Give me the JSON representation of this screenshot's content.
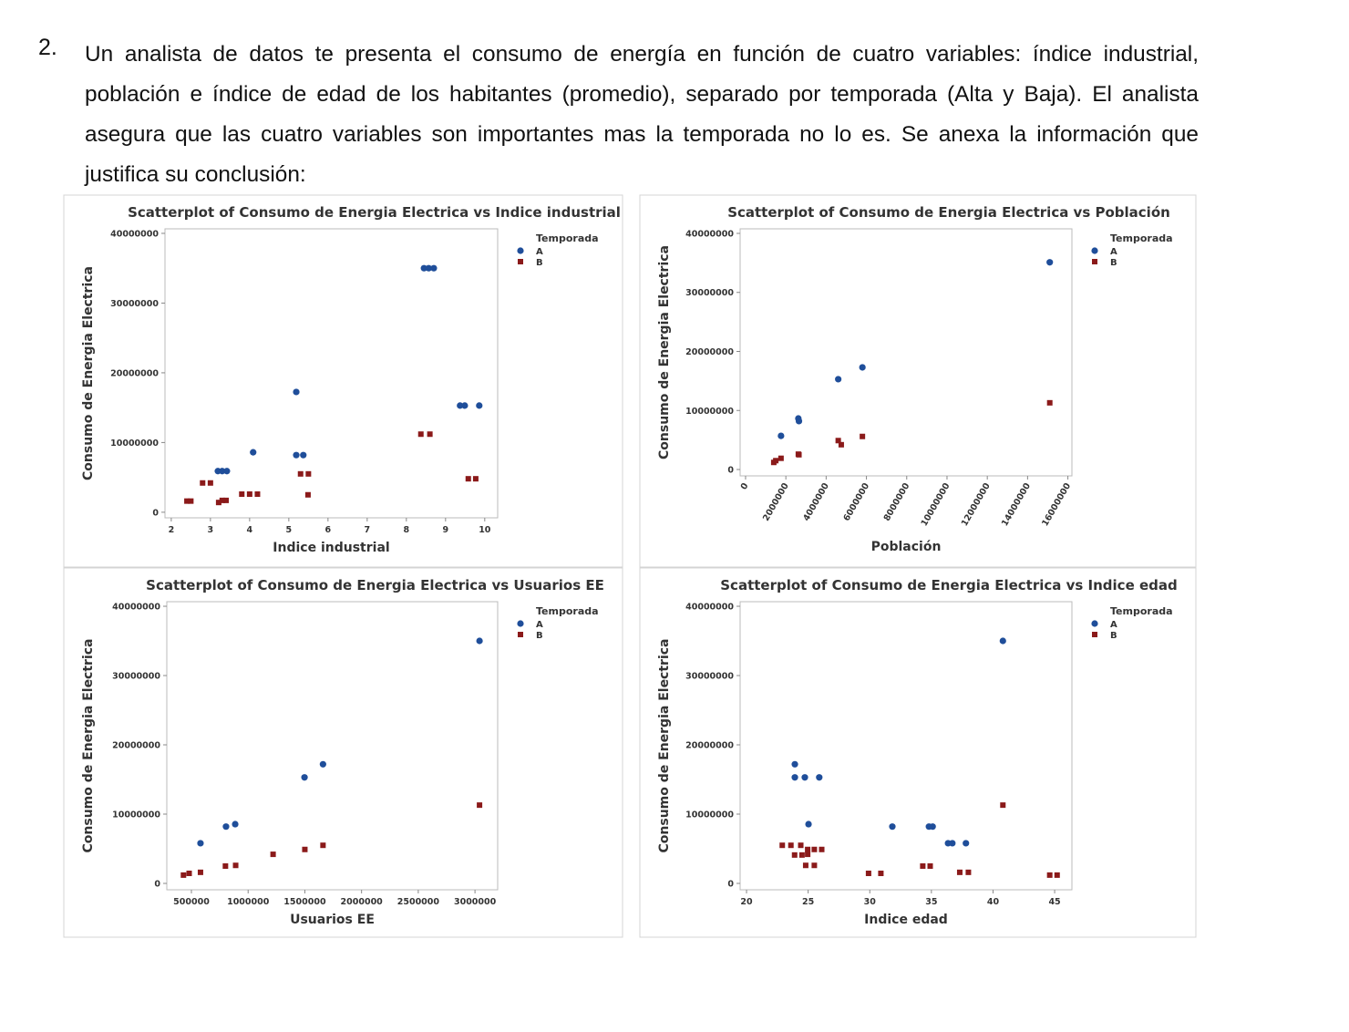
{
  "document": {
    "number": "2.",
    "paragraph": "Un analista de datos te presenta el consumo de energía en función de cuatro variables: índice industrial, población e índice de edad de los habitantes (promedio), separado por temporada (Alta y Baja).  El analista asegura que las cuatro variables son importantes mas la temporada no lo es.  Se anexa la información que justifica su conclusión:"
  },
  "chart_data": [
    {
      "type": "scatter",
      "title": "Scatterplot of Consumo de Energia Electrica vs Indice industrial",
      "x_label": "Indice industrial",
      "y_label": "Consumo de Energia Electrica",
      "legend_title": "Temporada",
      "legend": "right",
      "xlim": [
        1.84,
        10.33
      ],
      "xticks": [
        2,
        3,
        4,
        5,
        6,
        7,
        8,
        9,
        10
      ],
      "ylim": [
        -800000,
        40650000
      ],
      "yticks": [
        0,
        10000000,
        20000000,
        30000000,
        40000000
      ],
      "series": [
        {
          "name": "A",
          "color": "#1f4e9a",
          "marker": "circle",
          "x": [
            8.45,
            8.57,
            8.7,
            5.19,
            4.09,
            5.19,
            5.37,
            3.19,
            3.3,
            3.42,
            9.37,
            9.49,
            9.86
          ],
          "values": [
            35000000,
            35000000,
            35000000,
            17250000,
            8600000,
            8200000,
            8200000,
            5900000,
            5900000,
            5900000,
            15300000,
            15300000,
            15300000
          ]
        },
        {
          "name": "B",
          "color": "#8b1a1a",
          "marker": "square",
          "x": [
            2.4,
            2.5,
            2.8,
            3.0,
            3.21,
            3.3,
            3.4,
            3.8,
            4.0,
            4.2,
            5.3,
            5.5,
            5.49,
            8.37,
            8.6,
            9.58,
            9.77
          ],
          "values": [
            1600000,
            1600000,
            4200000,
            4200000,
            1400000,
            1700000,
            1700000,
            2600000,
            2600000,
            2600000,
            5500000,
            5500000,
            2500000,
            11200000,
            11200000,
            4800000,
            4800000
          ]
        }
      ]
    },
    {
      "type": "scatter",
      "title": "Scatterplot of Consumo de Energia Electrica vs Población",
      "x_label": "Población",
      "y_label": "Consumo de Energia Electrica",
      "legend_title": "Temporada",
      "legend": "right",
      "xtick_rotation": -60,
      "xlim": [
        -270000,
        16200000
      ],
      "xticks": [
        0,
        2000000,
        4000000,
        6000000,
        8000000,
        10000000,
        12000000,
        14000000,
        16000000
      ],
      "ylim": [
        -1080000,
        40770000
      ],
      "yticks": [
        0,
        10000000,
        20000000,
        30000000,
        40000000
      ],
      "series": [
        {
          "name": "A",
          "color": "#1f4e9a",
          "marker": "circle",
          "x": [
            1760000,
            2620000,
            2650000,
            4600000,
            5800000,
            15100000
          ],
          "values": [
            5700000,
            8650000,
            8200000,
            15300000,
            17300000,
            35100000
          ]
        },
        {
          "name": "B",
          "color": "#8b1a1a",
          "marker": "square",
          "x": [
            1400000,
            1500000,
            1760000,
            2620000,
            2650000,
            4600000,
            4750000,
            5800000,
            15100000
          ],
          "values": [
            1200000,
            1500000,
            1900000,
            2600000,
            2500000,
            4900000,
            4200000,
            5600000,
            11300000
          ]
        }
      ]
    },
    {
      "type": "scatter",
      "title": "Scatterplot of Consumo de Energia Electrica vs Usuarios EE",
      "x_label": "Usuarios EE",
      "y_label": "Consumo de Energia Electrica",
      "legend_title": "Temporada",
      "legend": "right",
      "xlim": [
        283000,
        3200000
      ],
      "xticks": [
        500000,
        1000000,
        1500000,
        2000000,
        2500000,
        3000000
      ],
      "ylim": [
        -920000,
        40660000
      ],
      "yticks": [
        0,
        10000000,
        20000000,
        30000000,
        40000000
      ],
      "series": [
        {
          "name": "A",
          "color": "#1f4e9a",
          "marker": "circle",
          "x": [
            580000,
            805000,
            886000,
            1497000,
            1660000,
            3040000
          ],
          "values": [
            5800000,
            8200000,
            8550000,
            15300000,
            17200000,
            35000000
          ]
        },
        {
          "name": "B",
          "color": "#8b1a1a",
          "marker": "square",
          "x": [
            430000,
            480000,
            580000,
            800000,
            890000,
            1220000,
            1500000,
            1660000,
            3040000
          ],
          "values": [
            1200000,
            1450000,
            1600000,
            2500000,
            2600000,
            4200000,
            4900000,
            5500000,
            11300000
          ]
        }
      ]
    },
    {
      "type": "scatter",
      "title": "Scatterplot of Consumo de Energia Electrica vs Indice edad",
      "x_label": "Indice edad",
      "y_label": "Consumo de Energia Electrica",
      "legend_title": "Temporada",
      "legend": "right",
      "xlim": [
        19.48,
        46.4
      ],
      "xticks": [
        20,
        25,
        30,
        35,
        40,
        45
      ],
      "ylim": [
        -920000,
        40660000
      ],
      "yticks": [
        0,
        10000000,
        20000000,
        30000000,
        40000000
      ],
      "series": [
        {
          "name": "A",
          "color": "#1f4e9a",
          "marker": "circle",
          "x": [
            23.92,
            23.92,
            24.73,
            25.9,
            25.03,
            31.83,
            34.8,
            35.1,
            36.35,
            36.7,
            37.8,
            40.8
          ],
          "values": [
            17200000,
            15300000,
            15300000,
            15300000,
            8550000,
            8200000,
            8200000,
            8200000,
            5800000,
            5800000,
            5800000,
            35000000
          ]
        },
        {
          "name": "B",
          "color": "#8b1a1a",
          "marker": "square",
          "x": [
            22.9,
            23.6,
            24.4,
            23.9,
            24.5,
            24.96,
            24.96,
            25.5,
            26.1,
            24.8,
            25.5,
            29.9,
            30.9,
            34.3,
            34.9,
            37.3,
            38.0,
            40.8,
            44.6,
            45.2
          ],
          "values": [
            5500000,
            5500000,
            5500000,
            4100000,
            4100000,
            4900000,
            4200000,
            4900000,
            4900000,
            2600000,
            2600000,
            1450000,
            1450000,
            2500000,
            2500000,
            1600000,
            1600000,
            11300000,
            1200000,
            1200000
          ]
        }
      ]
    }
  ]
}
